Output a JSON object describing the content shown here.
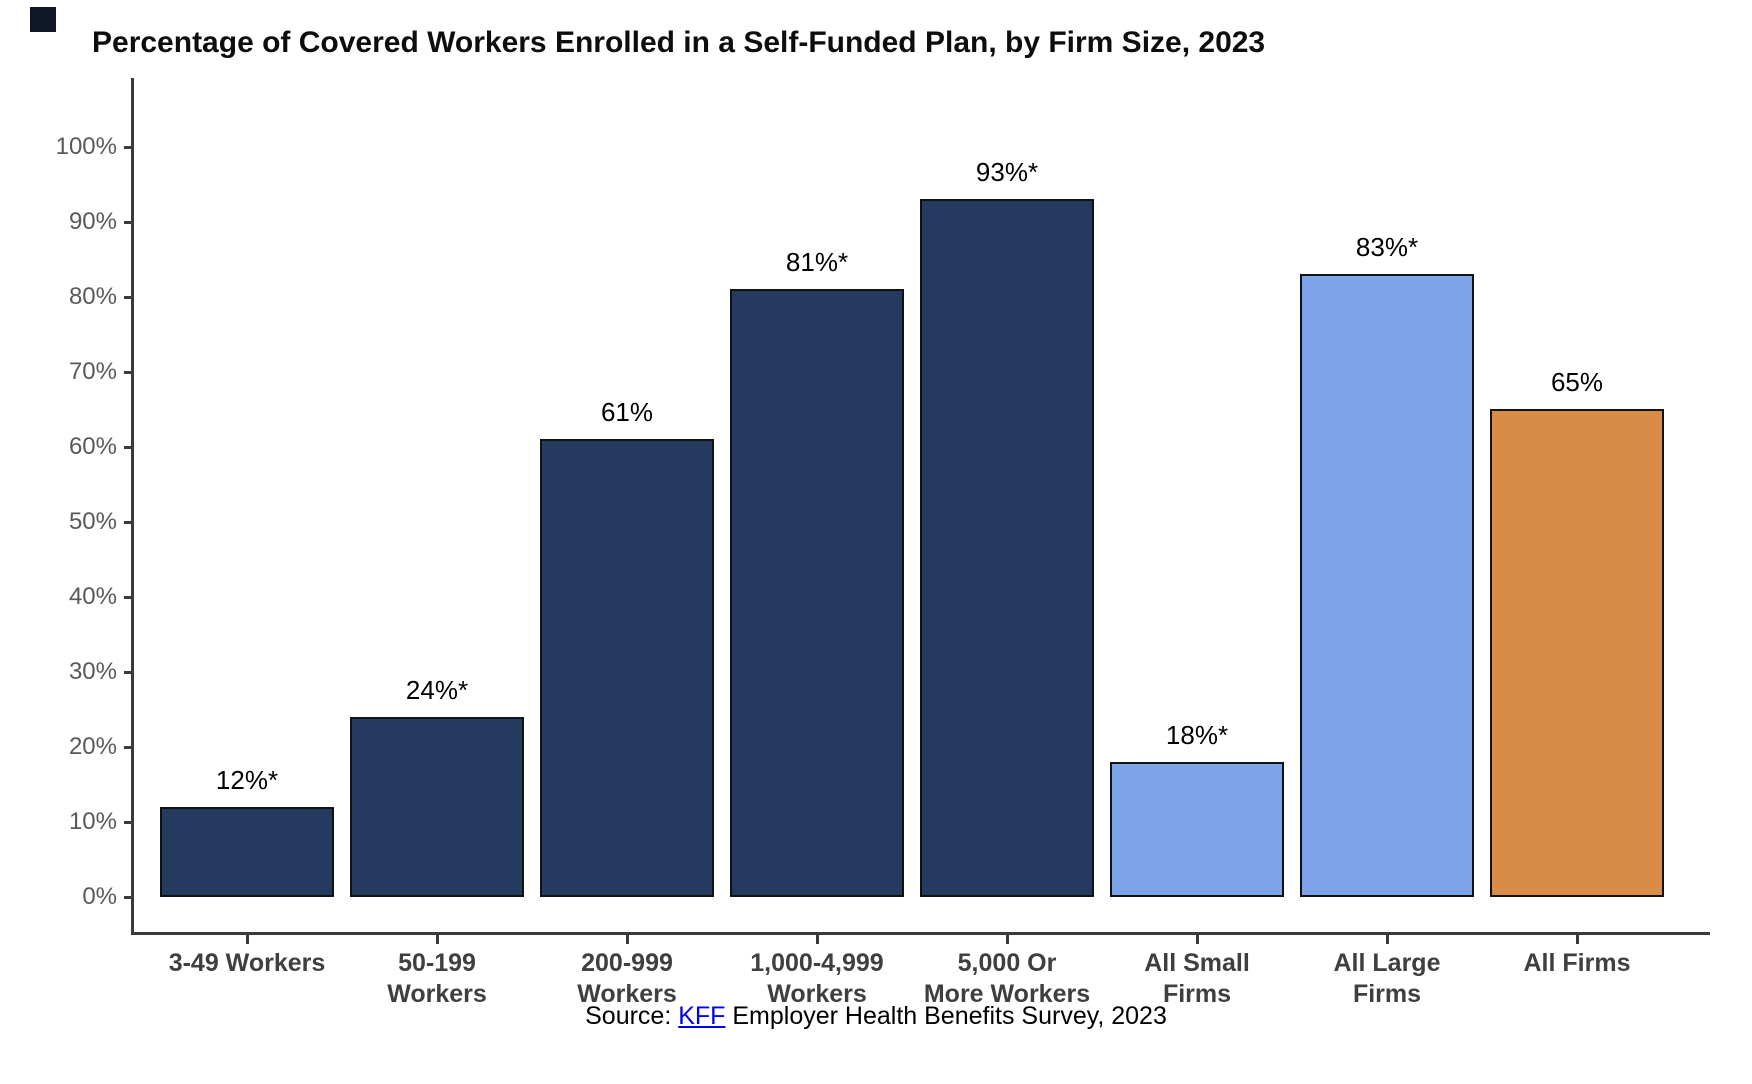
{
  "title": "Percentage of Covered Workers Enrolled in a Self-Funded Plan, by Firm Size, 2023",
  "chart_data": {
    "type": "bar",
    "title": "Percentage of Covered Workers Enrolled in a Self-Funded Plan, by Firm Size, 2023",
    "categories": [
      "3-49 Workers",
      "50-199 Workers",
      "200-999 Workers",
      "1,000-4,999 Workers",
      "5,000 Or More Workers",
      "All Small Firms",
      "All Large Firms",
      "All Firms"
    ],
    "category_label_lines": [
      [
        "3-49 Workers"
      ],
      [
        "50-199",
        "Workers"
      ],
      [
        "200-999",
        "Workers"
      ],
      [
        "1,000-4,999",
        "Workers"
      ],
      [
        "5,000 Or",
        "More Workers"
      ],
      [
        "All Small",
        "Firms"
      ],
      [
        "All Large",
        "Firms"
      ],
      [
        "All Firms"
      ]
    ],
    "values": [
      12,
      24,
      61,
      81,
      93,
      18,
      83,
      65
    ],
    "data_labels": [
      "12%*",
      "24%*",
      "61%",
      "81%*",
      "93%*",
      "18%*",
      "83%*",
      "65%"
    ],
    "bar_color_keys": [
      "navy",
      "navy",
      "navy",
      "navy",
      "navy",
      "lightblue",
      "lightblue",
      "orange"
    ],
    "xlabel": "",
    "ylabel": "",
    "ylim": [
      0,
      100
    ],
    "y_tick_labels": [
      "0%",
      "10%",
      "20%",
      "30%",
      "40%",
      "50%",
      "60%",
      "70%",
      "80%",
      "90%",
      "100%"
    ],
    "grid": false,
    "legend": "none"
  },
  "colors": {
    "navy": "#243a5e",
    "lightblue": "#7da3e9",
    "orange": "#d88c48",
    "bar_border": "#121212",
    "axis": "#3a3a3a",
    "y_tick_label": "#595959",
    "category_label": "#3f3f3f",
    "value_label": "#000000",
    "link": "#0000ee",
    "corner_square": "#101729"
  },
  "source": {
    "prefix": "Source: ",
    "link_text": "KFF",
    "suffix": " Employer Health Benefits Survey, 2023"
  }
}
